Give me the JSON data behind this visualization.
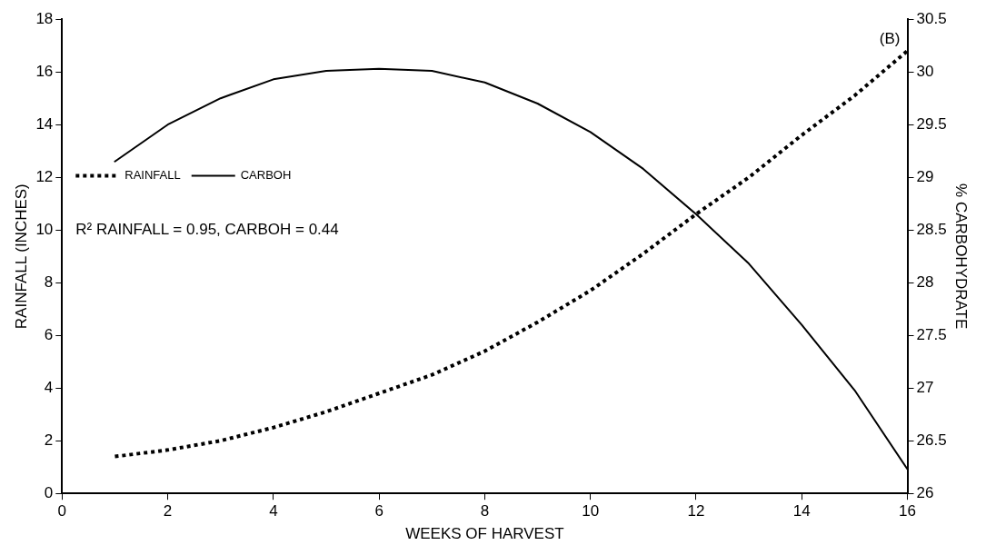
{
  "chart_data": {
    "type": "line",
    "xlabel": "WEEKS OF HARVEST",
    "ylabel": "RAINFALL (INCHES)",
    "y2label": "% CARBOHYDRATE",
    "x": [
      1,
      2,
      3,
      4,
      5,
      6,
      7,
      8,
      9,
      10,
      11,
      12,
      13,
      14,
      15,
      16
    ],
    "series": [
      {
        "name": "RAINFALL",
        "color": "#000000",
        "line_style": "dotted",
        "values": [
          1.4,
          1.65,
          2.0,
          2.5,
          3.1,
          3.8,
          4.5,
          5.4,
          6.5,
          7.7,
          9.1,
          10.6,
          12.0,
          13.6,
          15.1,
          16.8
        ]
      },
      {
        "name": "CARBOH",
        "color": "#000000",
        "line_style": "solid",
        "axis": "y2",
        "values": [
          29.15,
          29.5,
          29.75,
          29.93,
          30.01,
          30.03,
          30.01,
          29.9,
          29.7,
          29.43,
          29.08,
          28.65,
          28.18,
          27.6,
          26.98,
          26.23
        ]
      }
    ],
    "xlim": [
      0,
      16
    ],
    "xticks": [
      0,
      2,
      4,
      6,
      8,
      10,
      12,
      14,
      16
    ],
    "ylim": [
      0,
      18
    ],
    "yticks": [
      0,
      2,
      4,
      6,
      8,
      10,
      12,
      14,
      16,
      18
    ],
    "y2lim": [
      26,
      30.5
    ],
    "y2ticks": [
      26,
      26.5,
      27,
      27.5,
      28,
      28.5,
      29,
      29.5,
      30,
      30.5
    ],
    "grid": false,
    "legend": "top left",
    "marker": "none",
    "annotations": [
      "(B)",
      "R² RAINFALL = 0.95, CARBOH = 0.44"
    ]
  }
}
